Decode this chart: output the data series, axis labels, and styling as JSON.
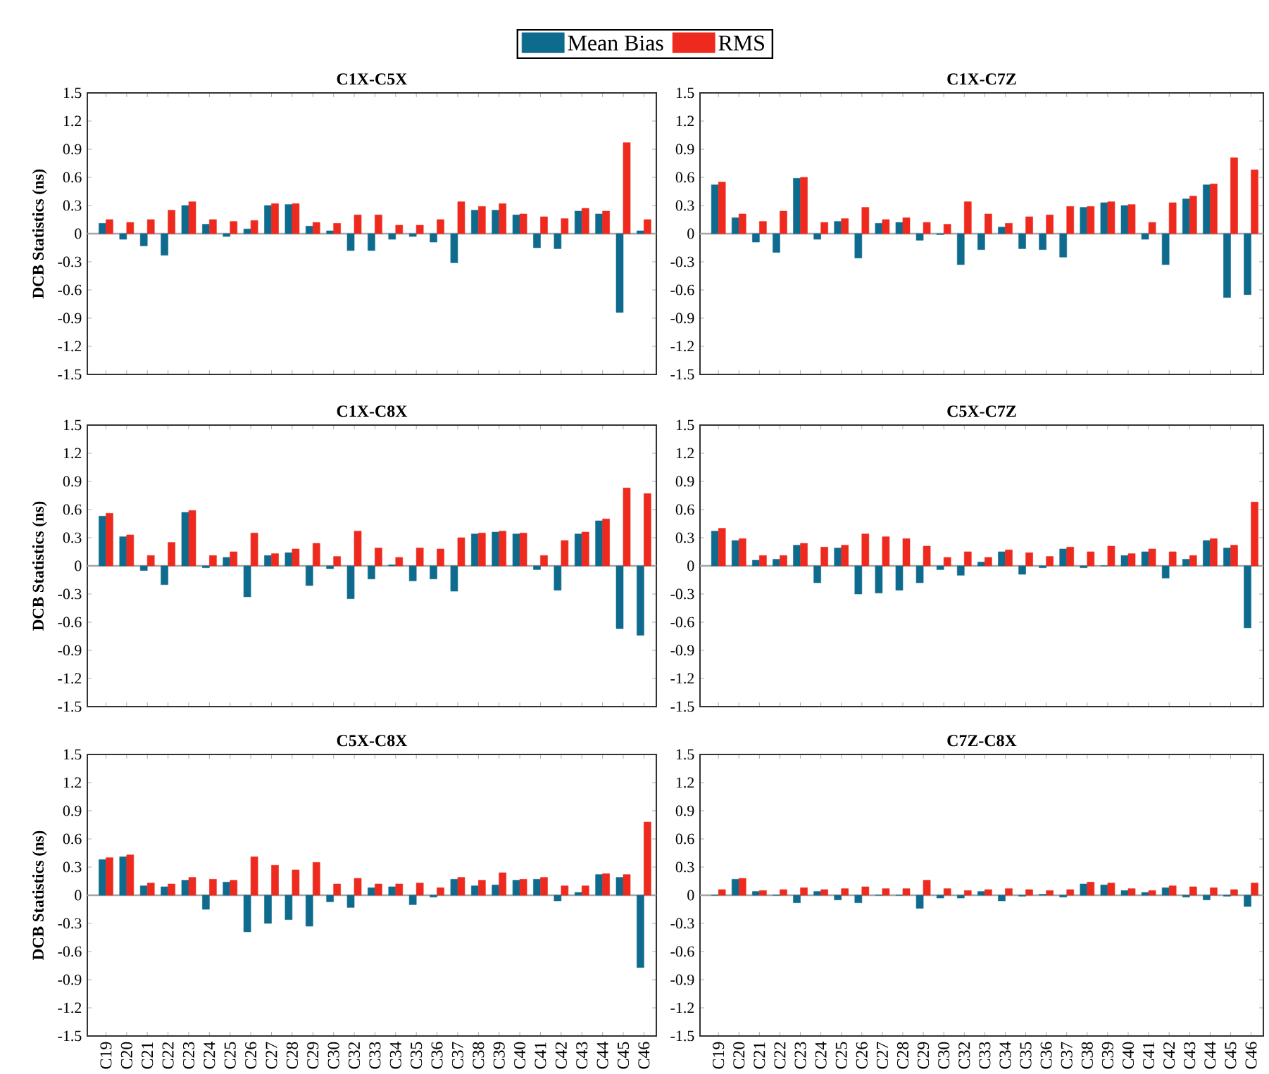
{
  "chart_data": [
    {
      "type": "bar",
      "title": "C1X-C5X",
      "ylabel": "DCB Statistics (ns)",
      "legend": "top",
      "tick_labels": "y",
      "categories": [
        null,
        null,
        null,
        null,
        null,
        null,
        null,
        null,
        null,
        null,
        null,
        null,
        null,
        null,
        null,
        null,
        null,
        null,
        null,
        null,
        null,
        null,
        null,
        null,
        null,
        null,
        null
      ],
      "series": [
        {
          "name": "Mean Bias",
          "color": "#0f6b8e",
          "values": [
            0.11,
            -0.06,
            -0.13,
            -0.23,
            0.3,
            0.1,
            -0.03,
            0.05,
            0.3,
            0.31,
            0.08,
            0.03,
            -0.18,
            -0.18,
            -0.06,
            -0.03,
            -0.09,
            -0.31,
            0.25,
            0.25,
            0.2,
            -0.15,
            -0.16,
            0.24,
            0.21,
            -0.84,
            0.03
          ]
        },
        {
          "name": "RMS",
          "color": "#ee2a1f",
          "values": [
            0.15,
            0.12,
            0.15,
            0.25,
            0.34,
            0.15,
            0.13,
            0.14,
            0.32,
            0.32,
            0.12,
            0.11,
            0.2,
            0.2,
            0.09,
            0.09,
            0.15,
            0.34,
            0.29,
            0.32,
            0.21,
            0.18,
            0.16,
            0.27,
            0.24,
            0.97,
            0.15
          ]
        }
      ],
      "ylim": [
        -1.5,
        1.5
      ],
      "yticks": [
        -1.5,
        -1.2,
        -0.9,
        -0.6,
        -0.3,
        0,
        0.3,
        0.6,
        0.9,
        1.2,
        1.5
      ]
    },
    {
      "type": "bar",
      "title": "C1X-C7Z",
      "tick_labels": "y",
      "categories": [
        null,
        null,
        null,
        null,
        null,
        null,
        null,
        null,
        null,
        null,
        null,
        null,
        null,
        null,
        null,
        null,
        null,
        null,
        null,
        null,
        null,
        null,
        null,
        null,
        null,
        null,
        null
      ],
      "series": [
        {
          "color": "#0f6b8e",
          "values": [
            0.52,
            0.17,
            -0.09,
            -0.2,
            0.59,
            -0.06,
            0.13,
            -0.26,
            0.11,
            0.12,
            -0.07,
            -0.01,
            -0.33,
            -0.17,
            0.07,
            -0.16,
            -0.17,
            -0.25,
            0.28,
            0.33,
            0.3,
            -0.06,
            -0.33,
            0.37,
            0.52,
            -0.68,
            -0.65
          ]
        },
        {
          "color": "#ee2a1f",
          "values": [
            0.55,
            0.21,
            0.13,
            0.24,
            0.6,
            0.12,
            0.16,
            0.28,
            0.15,
            0.17,
            0.12,
            0.1,
            0.34,
            0.21,
            0.11,
            0.18,
            0.2,
            0.29,
            0.29,
            0.34,
            0.31,
            0.12,
            0.33,
            0.4,
            0.53,
            0.81,
            0.68
          ]
        }
      ],
      "ylim": [
        -1.5,
        1.5
      ],
      "yticks": [
        -1.5,
        -1.2,
        -0.9,
        -0.6,
        -0.3,
        0,
        0.3,
        0.6,
        0.9,
        1.2,
        1.5
      ]
    },
    {
      "type": "bar",
      "title": "C1X-C8X",
      "ylabel": "DCB Statistics (ns)",
      "tick_labels": "y",
      "categories": [
        null,
        null,
        null,
        null,
        null,
        null,
        null,
        null,
        null,
        null,
        null,
        null,
        null,
        null,
        null,
        null,
        null,
        null,
        null,
        null,
        null,
        null,
        null,
        null,
        null,
        null,
        null
      ],
      "series": [
        {
          "color": "#0f6b8e",
          "values": [
            0.53,
            0.31,
            -0.05,
            -0.2,
            0.57,
            -0.02,
            0.09,
            -0.33,
            0.11,
            0.14,
            -0.21,
            -0.03,
            -0.35,
            -0.14,
            0.01,
            -0.16,
            -0.14,
            -0.27,
            0.34,
            0.36,
            0.34,
            -0.04,
            -0.26,
            0.34,
            0.48,
            -0.67,
            -0.74
          ]
        },
        {
          "color": "#ee2a1f",
          "values": [
            0.56,
            0.33,
            0.11,
            0.25,
            0.59,
            0.11,
            0.15,
            0.35,
            0.13,
            0.18,
            0.24,
            0.1,
            0.37,
            0.19,
            0.09,
            0.19,
            0.18,
            0.3,
            0.35,
            0.37,
            0.35,
            0.11,
            0.27,
            0.36,
            0.5,
            0.83,
            0.77
          ]
        }
      ],
      "ylim": [
        -1.5,
        1.5
      ],
      "yticks": [
        -1.5,
        -1.2,
        -0.9,
        -0.6,
        -0.3,
        0,
        0.3,
        0.6,
        0.9,
        1.2,
        1.5
      ]
    },
    {
      "type": "bar",
      "title": "C5X-C7Z",
      "tick_labels": "y",
      "categories": [
        null,
        null,
        null,
        null,
        null,
        null,
        null,
        null,
        null,
        null,
        null,
        null,
        null,
        null,
        null,
        null,
        null,
        null,
        null,
        null,
        null,
        null,
        null,
        null,
        null,
        null,
        null
      ],
      "series": [
        {
          "color": "#0f6b8e",
          "values": [
            0.37,
            0.27,
            0.06,
            0.07,
            0.22,
            -0.18,
            0.19,
            -0.3,
            -0.29,
            -0.26,
            -0.18,
            -0.04,
            -0.1,
            0.04,
            0.15,
            -0.09,
            -0.02,
            0.18,
            -0.02,
            0.0,
            0.11,
            0.15,
            -0.13,
            0.07,
            0.27,
            0.19,
            -0.66
          ]
        },
        {
          "color": "#ee2a1f",
          "values": [
            0.4,
            0.29,
            0.11,
            0.11,
            0.24,
            0.2,
            0.22,
            0.34,
            0.31,
            0.29,
            0.21,
            0.09,
            0.15,
            0.09,
            0.17,
            0.14,
            0.1,
            0.2,
            0.15,
            0.21,
            0.13,
            0.18,
            0.15,
            0.11,
            0.29,
            0.22,
            0.68
          ]
        }
      ],
      "ylim": [
        -1.5,
        1.5
      ],
      "yticks": [
        -1.5,
        -1.2,
        -0.9,
        -0.6,
        -0.3,
        0,
        0.3,
        0.6,
        0.9,
        1.2,
        1.5
      ]
    },
    {
      "type": "bar",
      "title": "C5X-C8X",
      "ylabel": "DCB Statistics (ns)",
      "categories": [
        "C19",
        "C20",
        "C21",
        "C22",
        "C23",
        "C24",
        "C25",
        "C26",
        "C27",
        "C28",
        "C29",
        "C30",
        "C32",
        "C33",
        "C34",
        "C35",
        "C36",
        "C37",
        "C38",
        "C39",
        "C40",
        "C41",
        "C42",
        "C43",
        "C44",
        "C45",
        "C46"
      ],
      "series": [
        {
          "color": "#0f6b8e",
          "values": [
            0.38,
            0.41,
            0.1,
            0.09,
            0.16,
            -0.15,
            0.14,
            -0.39,
            -0.3,
            -0.26,
            -0.33,
            -0.07,
            -0.13,
            0.08,
            0.09,
            -0.1,
            -0.02,
            0.17,
            0.1,
            0.11,
            0.16,
            0.17,
            -0.06,
            0.03,
            0.22,
            0.19,
            -0.77
          ]
        },
        {
          "color": "#ee2a1f",
          "values": [
            0.4,
            0.43,
            0.13,
            0.12,
            0.19,
            0.17,
            0.16,
            0.41,
            0.32,
            0.27,
            0.35,
            0.12,
            0.18,
            0.12,
            0.12,
            0.13,
            0.08,
            0.19,
            0.16,
            0.24,
            0.17,
            0.19,
            0.1,
            0.1,
            0.23,
            0.22,
            0.78
          ]
        }
      ],
      "ylim": [
        -1.5,
        1.5
      ],
      "yticks": [
        -1.5,
        -1.2,
        -0.9,
        -0.6,
        -0.3,
        0,
        0.3,
        0.6,
        0.9,
        1.2,
        1.5
      ]
    },
    {
      "type": "bar",
      "title": "C7Z-C8X",
      "categories": [
        "C19",
        "C20",
        "C21",
        "C22",
        "C23",
        "C24",
        "C25",
        "C26",
        "C27",
        "C28",
        "C29",
        "C30",
        "C32",
        "C33",
        "C34",
        "C35",
        "C36",
        "C37",
        "C38",
        "C39",
        "C40",
        "C41",
        "C42",
        "C43",
        "C44",
        "C45",
        "C46"
      ],
      "series": [
        {
          "color": "#0f6b8e",
          "values": [
            0.0,
            0.17,
            0.04,
            0.0,
            -0.08,
            0.04,
            -0.05,
            -0.08,
            0.0,
            0.0,
            -0.14,
            -0.03,
            -0.03,
            0.04,
            -0.06,
            -0.01,
            0.01,
            -0.02,
            0.12,
            0.11,
            0.05,
            0.03,
            0.08,
            -0.02,
            -0.05,
            -0.01,
            -0.12
          ]
        },
        {
          "color": "#ee2a1f",
          "values": [
            0.06,
            0.18,
            0.05,
            0.06,
            0.08,
            0.06,
            0.07,
            0.09,
            0.07,
            0.07,
            0.16,
            0.07,
            0.05,
            0.06,
            0.07,
            0.06,
            0.05,
            0.06,
            0.14,
            0.13,
            0.07,
            0.05,
            0.1,
            0.09,
            0.08,
            0.06,
            0.13
          ]
        }
      ],
      "ylim": [
        -1.5,
        1.5
      ],
      "yticks": [
        -1.5,
        -1.2,
        -0.9,
        -0.6,
        -0.3,
        0,
        0.3,
        0.6,
        0.9,
        1.2,
        1.5
      ]
    }
  ]
}
